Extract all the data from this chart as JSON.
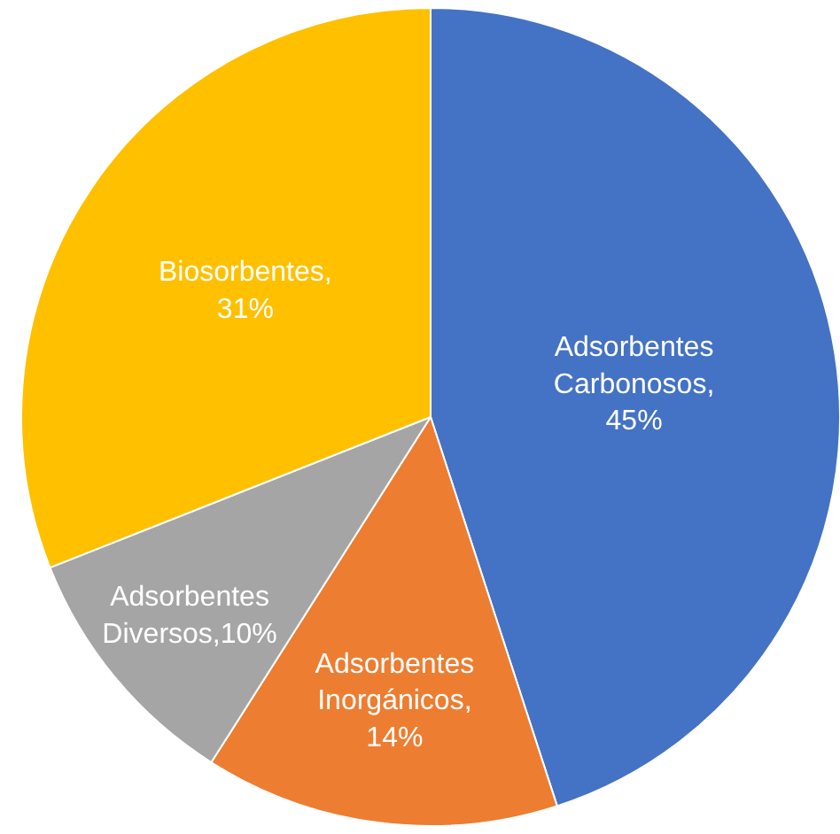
{
  "chart_data": {
    "type": "pie",
    "categories": [
      "Adsorbentes Carbonosos",
      "Adsorbentes Inorgánicos",
      "Adsorbentes Diversos",
      "Biosorbentes"
    ],
    "values": [
      45,
      14,
      10,
      31
    ],
    "colors": [
      "#4472c4",
      "#ed7d31",
      "#a5a5a5",
      "#ffc000"
    ],
    "value_labels": [
      ", 45%",
      ", 14%",
      ",10%",
      ", 31%"
    ],
    "legend": false
  }
}
